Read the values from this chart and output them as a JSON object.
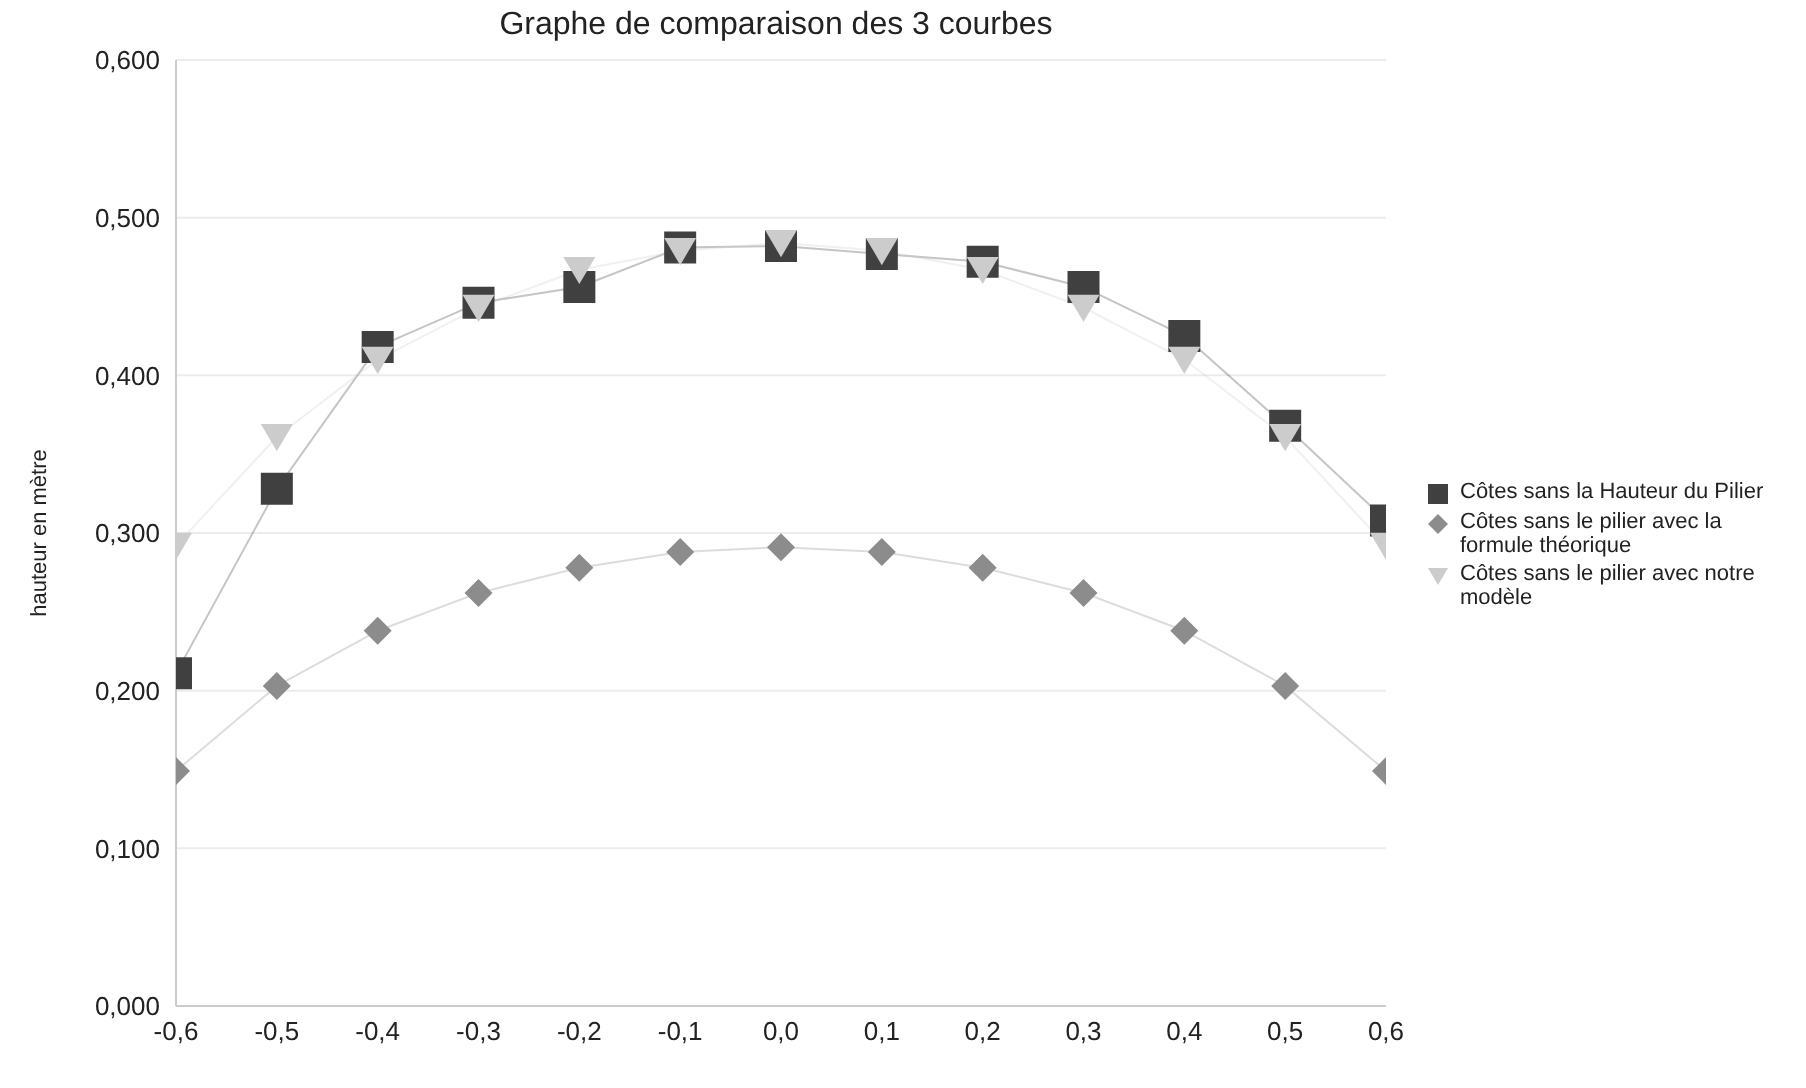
{
  "chart_data": {
    "type": "line",
    "title": "Graphe de comparaison des 3 courbes",
    "ylabel": "hauteur en mètre",
    "x": [
      -0.6,
      -0.5,
      -0.4,
      -0.3,
      -0.2,
      -0.1,
      0.0,
      0.1,
      0.2,
      0.3,
      0.4,
      0.5,
      0.6
    ],
    "series": [
      {
        "name": "Côtes sans la Hauteur du Pilier",
        "color": "#404040",
        "marker": "square",
        "values": [
          0.211,
          0.328,
          0.418,
          0.446,
          0.456,
          0.481,
          0.482,
          0.477,
          0.472,
          0.456,
          0.425,
          0.368,
          0.308
        ]
      },
      {
        "name": "Côtes sans le pilier avec la formule théorique",
        "color": "#8c8c8c",
        "marker": "diamond",
        "values": [
          0.149,
          0.203,
          0.238,
          0.262,
          0.278,
          0.288,
          0.291,
          0.288,
          0.278,
          0.262,
          0.238,
          0.203,
          0.149
        ]
      },
      {
        "name": "Côtes sans le pilier avec notre modèle",
        "color": "#cccccc",
        "marker": "triangle",
        "values": [
          0.292,
          0.361,
          0.41,
          0.443,
          0.467,
          0.479,
          0.484,
          0.479,
          0.467,
          0.443,
          0.41,
          0.361,
          0.292
        ]
      }
    ],
    "xlim": [
      -0.6,
      0.6
    ],
    "xticks": [
      {
        "value": -0.6,
        "label": "-0,6"
      },
      {
        "value": -0.5,
        "label": "-0,5"
      },
      {
        "value": -0.4,
        "label": "-0,4"
      },
      {
        "value": -0.3,
        "label": "-0,3"
      },
      {
        "value": -0.2,
        "label": "-0,2"
      },
      {
        "value": -0.1,
        "label": "-0,1"
      },
      {
        "value": 0,
        "label": "0,0"
      },
      {
        "value": 0.1,
        "label": "0,1"
      },
      {
        "value": 0.2,
        "label": "0,2"
      },
      {
        "value": 0.3,
        "label": "0,3"
      },
      {
        "value": 0.4,
        "label": "0,4"
      },
      {
        "value": 0.5,
        "label": "0,5"
      },
      {
        "value": 0.6,
        "label": "0,6"
      }
    ],
    "ylim": [
      0,
      0.6
    ],
    "yticks": [
      {
        "value": 0,
        "label": "0,000"
      },
      {
        "value": 0.1,
        "label": "0,100"
      },
      {
        "value": 0.2,
        "label": "0,200"
      },
      {
        "value": 0.3,
        "label": "0,300"
      },
      {
        "value": 0.4,
        "label": "0,400"
      },
      {
        "value": 0.5,
        "label": "0,500"
      },
      {
        "value": 0.6,
        "label": "0,600"
      }
    ],
    "grid": "y",
    "legend": "right",
    "line_style": "solid"
  }
}
